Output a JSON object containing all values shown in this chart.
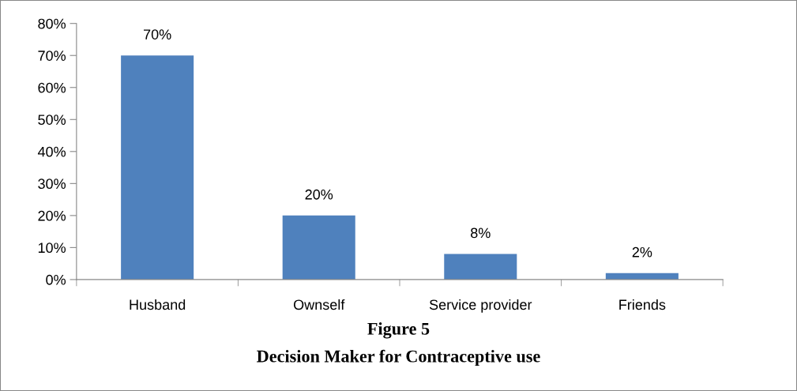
{
  "chart_data": {
    "type": "bar",
    "title": "Figure 5",
    "subtitle": "Decision Maker for Contraceptive use",
    "categories": [
      "Husband",
      "Ownself",
      "Service provider",
      "Friends"
    ],
    "values": [
      70,
      20,
      8,
      2
    ],
    "color": "#4f81bd",
    "value_labels": [
      "70%",
      "20%",
      "8%",
      "2%"
    ],
    "ylim": [
      0,
      80
    ],
    "yticks": [
      {
        "value": 0,
        "label": "0%"
      },
      {
        "value": 10,
        "label": "10%"
      },
      {
        "value": 20,
        "label": "20%"
      },
      {
        "value": 30,
        "label": "30%"
      },
      {
        "value": 40,
        "label": "40%"
      },
      {
        "value": 50,
        "label": "50%"
      },
      {
        "value": 60,
        "label": "60%"
      },
      {
        "value": 70,
        "label": "70%"
      },
      {
        "value": 80,
        "label": "80%"
      }
    ],
    "grid": false,
    "legend": false
  }
}
